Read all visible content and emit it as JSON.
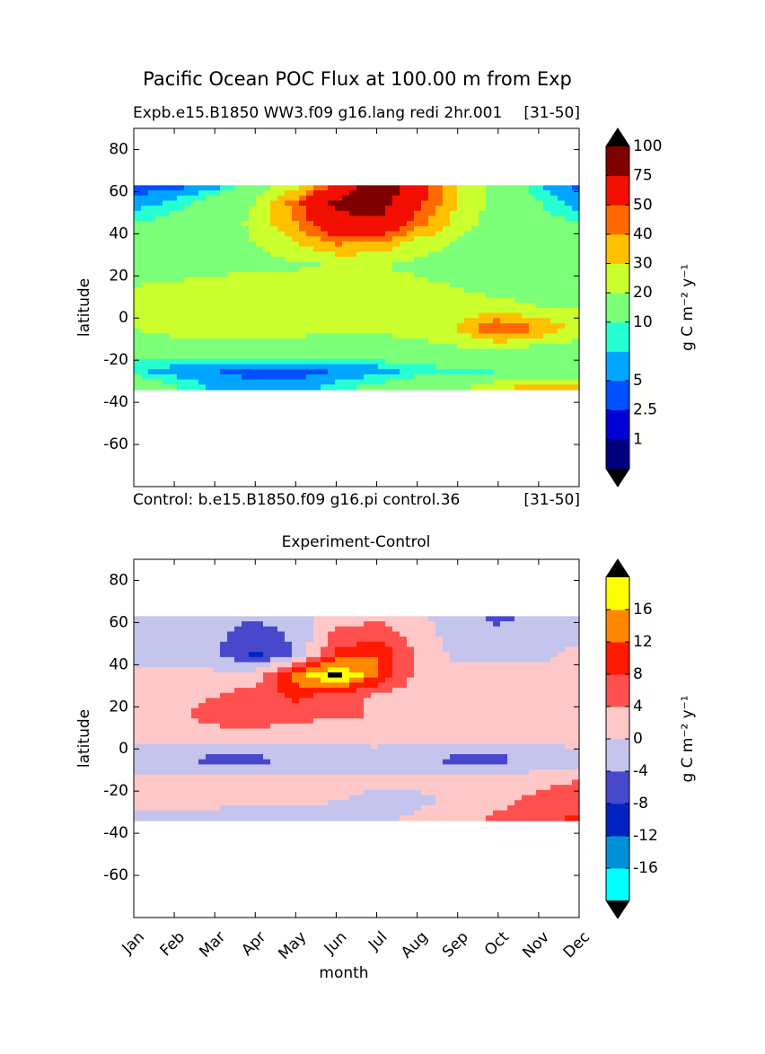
{
  "figure": {
    "suptitle": "Pacific Ocean POC Flux at 100.00 m from Exp",
    "panel1_title_left": "Expb.e15.B1850 WW3.f09 g16.lang redi 2hr.001",
    "panel1_title_right": "[31-50]",
    "control_label": "Control: b.e15.B1850.f09 g16.pi control.36",
    "control_period": "[31-50]",
    "panel2_title": "Experiment-Control"
  },
  "chart_data": [
    {
      "type": "heatmap",
      "title": "Expb.e15.B1850 WW3.f09 g16.lang redi 2hr.001",
      "xlabel": "",
      "ylabel": "latitude",
      "x": [
        "Jan",
        "Feb",
        "Mar",
        "Apr",
        "May",
        "Jun",
        "Jul",
        "Aug",
        "Sep",
        "Oct",
        "Nov",
        "Dec"
      ],
      "ylim": [
        -80,
        90
      ],
      "yticks": [
        80,
        60,
        40,
        20,
        0,
        -20,
        -40,
        -60
      ],
      "data_lat_range": [
        -34,
        63
      ],
      "colorbar": {
        "label": "g C m⁻² y⁻¹",
        "tick_labels": [
          "1",
          "2.5",
          "5",
          "10",
          "20",
          "30",
          "40",
          "50",
          "75",
          "100"
        ],
        "levels": [
          0,
          1,
          2.5,
          5,
          7.5,
          10,
          20,
          30,
          40,
          50,
          75,
          100,
          125
        ],
        "colors": [
          "#00007f",
          "#0000d4",
          "#0050ff",
          "#00a6ff",
          "#26ffd1",
          "#7cff79",
          "#cbff2d",
          "#ffc000",
          "#ff6a00",
          "#f20f00",
          "#7f0000"
        ],
        "extend": "both",
        "under_color": "#000000",
        "over_color": "#000000"
      },
      "latitudes": [
        63,
        55,
        45,
        35,
        25,
        15,
        5,
        -5,
        -15,
        -25,
        -34
      ],
      "values": [
        [
          3,
          4,
          6,
          12,
          25,
          55,
          95,
          60,
          30,
          15,
          8,
          4
        ],
        [
          6,
          8,
          12,
          20,
          45,
          80,
          90,
          55,
          30,
          15,
          10,
          6
        ],
        [
          10,
          12,
          15,
          22,
          40,
          65,
          70,
          45,
          25,
          15,
          12,
          10
        ],
        [
          12,
          13,
          15,
          20,
          28,
          40,
          38,
          25,
          18,
          13,
          12,
          12
        ],
        [
          14,
          14,
          15,
          16,
          18,
          20,
          20,
          18,
          15,
          14,
          13,
          13
        ],
        [
          20,
          22,
          25,
          28,
          28,
          26,
          24,
          22,
          20,
          18,
          18,
          18
        ],
        [
          22,
          26,
          30,
          30,
          28,
          25,
          24,
          22,
          22,
          22,
          20,
          20
        ],
        [
          20,
          24,
          27,
          27,
          24,
          22,
          22,
          24,
          30,
          52,
          40,
          25
        ],
        [
          12,
          13,
          15,
          15,
          14,
          13,
          14,
          16,
          18,
          17,
          15,
          14
        ],
        [
          8,
          6,
          5,
          4,
          4,
          5,
          6,
          8,
          9,
          9,
          10,
          9
        ],
        [
          15,
          11,
          7,
          6,
          6,
          9,
          12,
          15,
          18,
          28,
          40,
          35
        ]
      ]
    },
    {
      "type": "heatmap",
      "title": "Experiment-Control",
      "xlabel": "month",
      "ylabel": "latitude",
      "x": [
        "Jan",
        "Feb",
        "Mar",
        "Apr",
        "May",
        "Jun",
        "Jul",
        "Aug",
        "Sep",
        "Oct",
        "Nov",
        "Dec"
      ],
      "ylim": [
        -80,
        90
      ],
      "yticks": [
        80,
        60,
        40,
        20,
        0,
        -20,
        -40,
        -60
      ],
      "data_lat_range": [
        -34,
        63
      ],
      "colorbar": {
        "label": "g C m⁻² y⁻¹",
        "tick_labels": [
          "-16",
          "-12",
          "-8",
          "-4",
          "0",
          "4",
          "8",
          "12",
          "16"
        ],
        "levels": [
          -20,
          -16,
          -12,
          -8,
          -4,
          0,
          4,
          8,
          12,
          16,
          20
        ],
        "colors": [
          "#00ffff",
          "#0090d8",
          "#0022c0",
          "#4848cc",
          "#c4c4ec",
          "#ffc8c8",
          "#ff5050",
          "#ff1a00",
          "#ff8800",
          "#ffff00"
        ],
        "extend": "both",
        "under_color": "#000000",
        "over_color": "#000000"
      },
      "latitudes": [
        63,
        55,
        45,
        35,
        25,
        15,
        5,
        -5,
        -15,
        -25,
        -34
      ],
      "values": [
        [
          -2,
          -2,
          -3,
          -3,
          -1,
          2,
          3,
          1,
          -3,
          -5,
          -3,
          -2
        ],
        [
          -1,
          -2,
          -3,
          -6,
          -3,
          5,
          6,
          2,
          -2,
          -3,
          -2,
          -1
        ],
        [
          -1,
          -2,
          -3,
          -9,
          -4,
          9,
          12,
          3,
          -1,
          -1,
          -1,
          1
        ],
        [
          1,
          1,
          1,
          2,
          14,
          22,
          12,
          3,
          1,
          1,
          1,
          1
        ],
        [
          2,
          3,
          4,
          6,
          9,
          6,
          3,
          2,
          2,
          1,
          1,
          1
        ],
        [
          1,
          3,
          6,
          7,
          5,
          4,
          4,
          3,
          3,
          2,
          1,
          1
        ],
        [
          1,
          1,
          1,
          1,
          1,
          1,
          2,
          1,
          1,
          1,
          1,
          2
        ],
        [
          -3,
          -4,
          -5,
          -5,
          -4,
          -3,
          -3,
          -4,
          -5,
          -5,
          -4,
          -2
        ],
        [
          1,
          1,
          1,
          1,
          1,
          1,
          1,
          1,
          1,
          2,
          3,
          4
        ],
        [
          1,
          1,
          1,
          1,
          1,
          0,
          -1,
          -1,
          1,
          3,
          5,
          6
        ],
        [
          -1,
          -2,
          -2,
          -3,
          -3,
          -2,
          -1,
          1,
          3,
          5,
          7,
          9
        ]
      ]
    }
  ]
}
